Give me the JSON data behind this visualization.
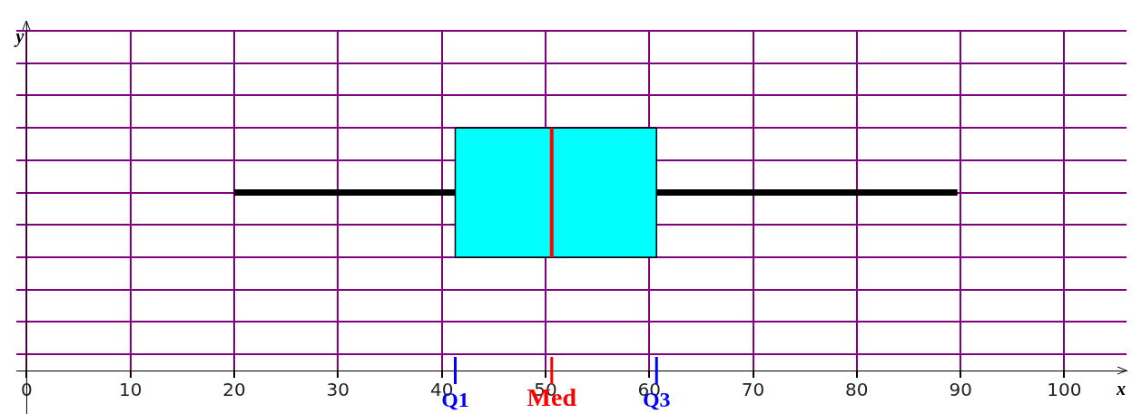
{
  "chart_data": {
    "type": "box",
    "orientation": "horizontal",
    "categories": [
      null
    ],
    "xlabel": "x",
    "ylabel": "y",
    "xlim": [
      -1,
      106
    ],
    "xticks": [
      0,
      10,
      20,
      30,
      40,
      50,
      60,
      70,
      80,
      90,
      100
    ],
    "boxes": [
      {
        "low": 20,
        "q1": 41.3,
        "median": 50.6,
        "q3": 60.7,
        "high": 89.7
      }
    ],
    "color": "#00ffff",
    "grid": true,
    "annotations": [
      "Q1",
      "Med",
      "Q3"
    ]
  }
}
